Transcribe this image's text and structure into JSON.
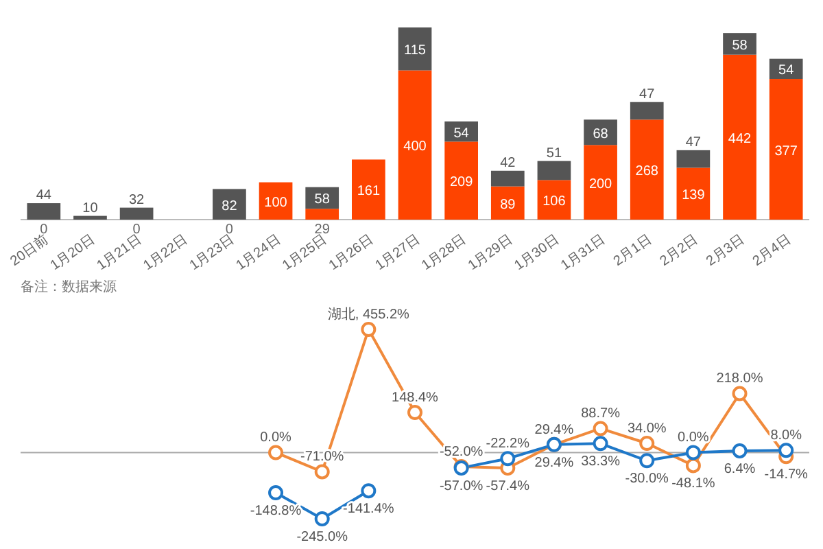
{
  "chart_data": [
    {
      "type": "bar",
      "stacked": true,
      "data_labels": true,
      "categories": [
        "20日前",
        "1月20日",
        "1月21日",
        "1月22日",
        "1月23日",
        "1月24日",
        "1月25日",
        "1月26日",
        "1月27日",
        "1月28日",
        "1月29日",
        "1月30日",
        "1月31日",
        "2月1日",
        "2月2日",
        "2月3日",
        "2月4日"
      ],
      "series": [
        {
          "color": "#fe4400",
          "values": [
            0,
            null,
            0,
            null,
            0,
            100,
            29,
            161,
            400,
            209,
            89,
            106,
            200,
            268,
            139,
            442,
            377
          ]
        },
        {
          "color": "#555555",
          "values": [
            44,
            10,
            32,
            null,
            82,
            null,
            58,
            null,
            115,
            54,
            42,
            51,
            68,
            47,
            47,
            58,
            54
          ]
        }
      ],
      "annotations": [
        "备注：数据来源"
      ]
    },
    {
      "type": "line",
      "marker": "circle",
      "categories": [
        null,
        null,
        null,
        null,
        null,
        null,
        null,
        null,
        null,
        null,
        null,
        null,
        null,
        null,
        null,
        null,
        null
      ],
      "series": [
        {
          "color": "#f08a3c",
          "values": [
            null,
            null,
            null,
            null,
            null,
            0.0,
            -71.0,
            455.2,
            148.4,
            -52.0,
            -57.4,
            29.4,
            88.7,
            34.0,
            -48.1,
            218.0,
            -14.7
          ],
          "value_labels": [
            null,
            null,
            null,
            null,
            null,
            "0.0%",
            "-71.0%",
            "湖北, 455.2%",
            "148.4%",
            "-52.0%",
            "-57.4%",
            "29.4%",
            "88.7%",
            "34.0%",
            "-48.1%",
            "218.0%",
            "-14.7%"
          ]
        },
        {
          "color": "#1f78c8",
          "values": [
            null,
            null,
            null,
            null,
            null,
            -148.8,
            -245.0,
            -141.4,
            null,
            -57.0,
            -22.2,
            29.4,
            33.3,
            -30.0,
            0.0,
            6.4,
            8.0
          ],
          "value_labels": [
            null,
            null,
            null,
            null,
            null,
            "-148.8%",
            "-245.0%",
            "-141.4%",
            null,
            "-57.0%",
            "-22.2%",
            "29.4%",
            "33.3%",
            "-30.0%",
            "0.0%",
            "6.4%",
            "8.0%"
          ]
        }
      ]
    }
  ]
}
